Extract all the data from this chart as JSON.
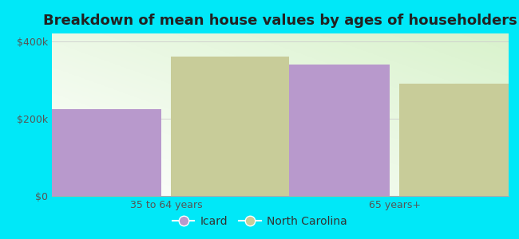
{
  "title": "Breakdown of mean house values by ages of householders",
  "categories": [
    "35 to 64 years",
    "65 years+"
  ],
  "series": {
    "Icard": [
      225000,
      340000
    ],
    "North Carolina": [
      360000,
      290000
    ]
  },
  "colors": {
    "Icard": "#b899cc",
    "North Carolina": "#c8cc99"
  },
  "ylim": [
    0,
    420000
  ],
  "yticks": [
    0,
    200000,
    400000
  ],
  "ytick_labels": [
    "$0",
    "$200k",
    "$400k"
  ],
  "background_color": "#00e8f8",
  "bar_width": 0.28,
  "title_fontsize": 13,
  "tick_fontsize": 9,
  "legend_fontsize": 10
}
